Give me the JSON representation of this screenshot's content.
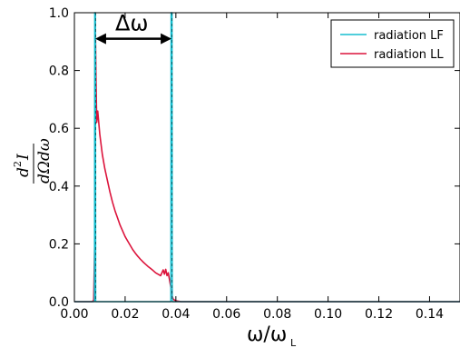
{
  "chart_data": {
    "type": "line",
    "xlabel": "ω/ω",
    "xlabel_sub": "L",
    "ylabel": {
      "numerator": "d",
      "numerator_sup": "2",
      "numerator_tail": "I",
      "denominator": "dΩdω"
    },
    "xlim": [
      0.0,
      0.152
    ],
    "ylim": [
      0.0,
      1.0
    ],
    "x_ticks": [
      "0.00",
      "0.02",
      "0.04",
      "0.06",
      "0.08",
      "0.10",
      "0.12",
      "0.14"
    ],
    "y_ticks": [
      "0.0",
      "0.2",
      "0.4",
      "0.6",
      "0.8",
      "1.0"
    ],
    "grid": false,
    "legend_position": "top-right",
    "annotation": {
      "text": "Δω",
      "from_x": 0.0082,
      "to_x": 0.0383,
      "y": 0.91
    },
    "series": [
      {
        "name": "radiation LF",
        "color": "#17becf",
        "points": [
          [
            0.0,
            0.0
          ],
          [
            0.0079,
            0.0
          ],
          [
            0.008,
            1.0
          ],
          [
            0.0083,
            1.0
          ],
          [
            0.0084,
            0.0
          ],
          [
            0.038,
            0.0
          ],
          [
            0.0381,
            1.0
          ],
          [
            0.0385,
            1.0
          ],
          [
            0.0386,
            0.0
          ],
          [
            0.152,
            0.0
          ]
        ]
      },
      {
        "name": "radiation LL",
        "color": "#dc143c",
        "points": [
          [
            0.0,
            0.0
          ],
          [
            0.007,
            0.0
          ],
          [
            0.0076,
            0.005
          ],
          [
            0.008,
            0.2
          ],
          [
            0.0082,
            1.0
          ],
          [
            0.0085,
            0.78
          ],
          [
            0.0088,
            0.62
          ],
          [
            0.0092,
            0.66
          ],
          [
            0.01,
            0.58
          ],
          [
            0.011,
            0.51
          ],
          [
            0.012,
            0.46
          ],
          [
            0.013,
            0.42
          ],
          [
            0.014,
            0.38
          ],
          [
            0.015,
            0.345
          ],
          [
            0.016,
            0.315
          ],
          [
            0.017,
            0.29
          ],
          [
            0.018,
            0.265
          ],
          [
            0.019,
            0.245
          ],
          [
            0.02,
            0.225
          ],
          [
            0.021,
            0.21
          ],
          [
            0.022,
            0.195
          ],
          [
            0.023,
            0.18
          ],
          [
            0.024,
            0.168
          ],
          [
            0.025,
            0.157
          ],
          [
            0.026,
            0.147
          ],
          [
            0.027,
            0.138
          ],
          [
            0.028,
            0.13
          ],
          [
            0.029,
            0.122
          ],
          [
            0.03,
            0.115
          ],
          [
            0.031,
            0.108
          ],
          [
            0.032,
            0.1
          ],
          [
            0.033,
            0.095
          ],
          [
            0.034,
            0.09
          ],
          [
            0.035,
            0.11
          ],
          [
            0.0355,
            0.095
          ],
          [
            0.036,
            0.112
          ],
          [
            0.0365,
            0.09
          ],
          [
            0.037,
            0.1
          ],
          [
            0.0375,
            0.075
          ],
          [
            0.038,
            0.05
          ],
          [
            0.0385,
            0.02
          ],
          [
            0.039,
            0.008
          ],
          [
            0.04,
            0.003
          ],
          [
            0.042,
            0.0
          ],
          [
            0.152,
            0.0
          ]
        ]
      }
    ]
  }
}
